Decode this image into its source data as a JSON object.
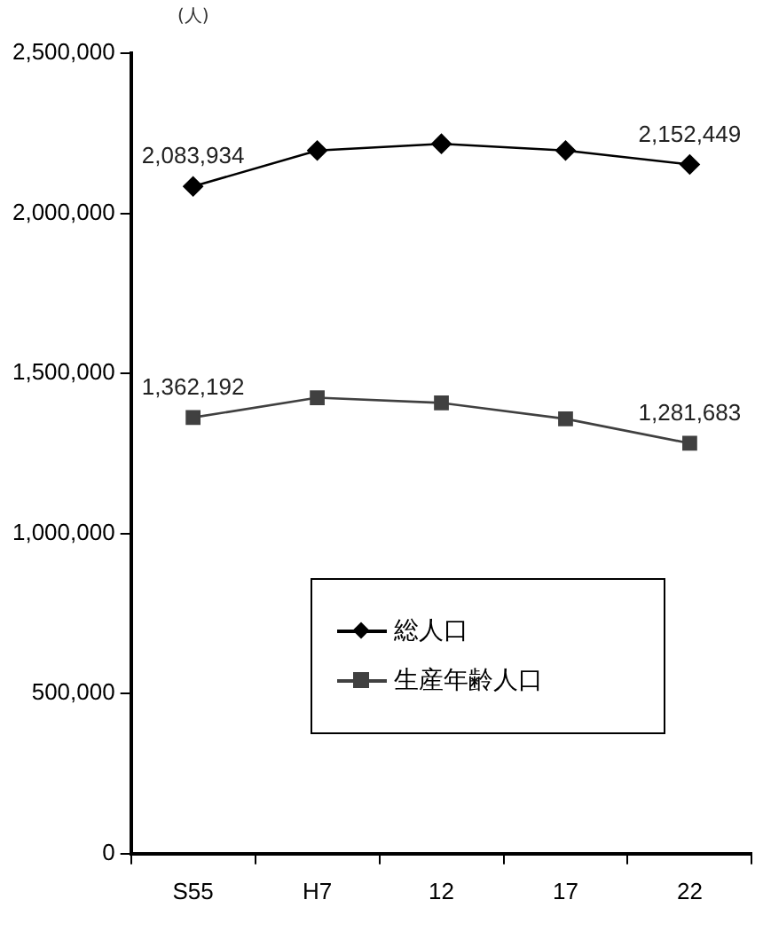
{
  "chart_data": {
    "type": "line",
    "ylabel": "(人)",
    "categories": [
      "S55",
      "H7",
      "12",
      "17",
      "22"
    ],
    "series": [
      {
        "name": "総人口",
        "color": "#000000",
        "marker": "diamond",
        "values": [
          2083934,
          2196000,
          2217000,
          2196000,
          2152449
        ],
        "value_labels": [
          "2,083,934",
          null,
          null,
          null,
          "2,152,449"
        ]
      },
      {
        "name": "生産年齢人口",
        "color": "#404040",
        "marker": "square",
        "values": [
          1362192,
          1424000,
          1408000,
          1358000,
          1281683
        ],
        "value_labels": [
          "1,362,192",
          null,
          null,
          null,
          "1,281,683"
        ]
      }
    ],
    "ylim": [
      0,
      2500000
    ],
    "yticks": [
      0,
      {
        "value": 500000,
        "label": "500,000"
      },
      {
        "value": 1000000,
        "label": "1,000,000"
      },
      {
        "value": 1500000,
        "label": "1,500,000"
      },
      {
        "value": 2000000,
        "label": "2,000,000"
      },
      {
        "value": 2500000,
        "label": "2,500,000"
      }
    ],
    "grid": false,
    "legend": "center"
  }
}
